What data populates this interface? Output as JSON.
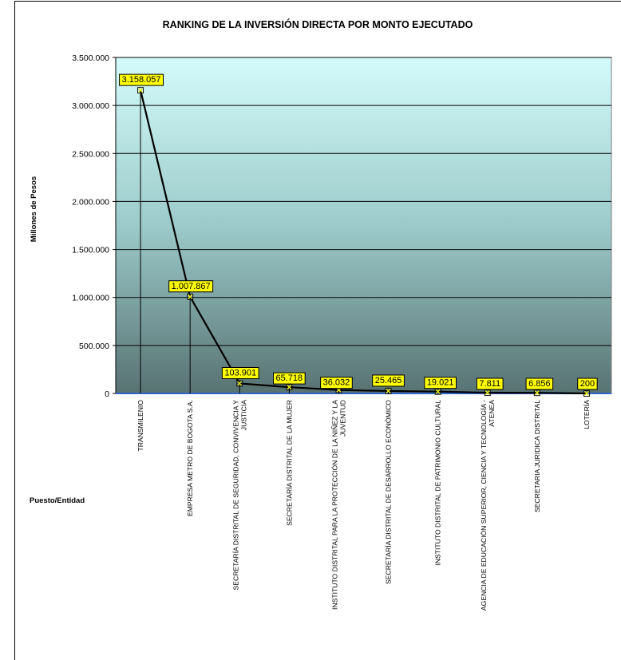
{
  "chart_data": {
    "type": "line",
    "title": "RANKING DE LA INVERSIÓN DIRECTA POR MONTO EJECUTADO",
    "ylabel": "Millones de Pesos",
    "xlabel": "Puesto/Entidad",
    "ylim": [
      0,
      3500000
    ],
    "yticks": [
      0,
      500000,
      1000000,
      1500000,
      2000000,
      2500000,
      3000000,
      3500000
    ],
    "ytick_labels": [
      "0",
      "500.000",
      "1.000.000",
      "1.500.000",
      "2.000.000",
      "2.500.000",
      "3.000.000",
      "3.500.000"
    ],
    "categories": [
      [
        "TRANSMILENIO"
      ],
      [
        "EMPRESA METRO DE BOGOTA S.A."
      ],
      [
        "SECRETARÍA DISTRITAL DE SEGURIDAD, CONVIVENCIA Y",
        "JUSTICIA"
      ],
      [
        "SECRETARÍA DISTRITAL DE LA MUJER"
      ],
      [
        "INSTITUTO DISTRITAL PARA LA PROTECCIÓN DE LA NIÑEZ Y LA",
        "JUVENTUD"
      ],
      [
        "SECRETARÍA DISTRITAL DE DESARROLLO ECONÓMICO"
      ],
      [
        "INSTITUTO DISTRITAL DE PATRIMONIO CULTURAL"
      ],
      [
        "AGENCIA DE EDUCACIÓN SUPERIOR, CIENCIA Y TECNOLOGÍA -",
        "ATENEA"
      ],
      [
        "SECRETARIA JURIDICA DISTRITAL"
      ],
      [
        "LOTERÍA"
      ]
    ],
    "values": [
      3158057,
      1007867,
      103901,
      65718,
      36032,
      25465,
      19021,
      7811,
      6856,
      200
    ],
    "value_labels": [
      "3.158.057",
      "1.007.867",
      "103.901",
      "65.718",
      "36.032",
      "25.465",
      "19.021",
      "7.811",
      "6.856",
      "200"
    ],
    "grid": true,
    "legend": "none",
    "colors": {
      "plot_top": "#d4fbfb",
      "plot_mid": "#9ccaca",
      "plot_bottom": "#587272",
      "line": "#000000",
      "label_fill": "#ffff00",
      "marker": "#ffff00",
      "xaxis": "#3366cc"
    }
  }
}
